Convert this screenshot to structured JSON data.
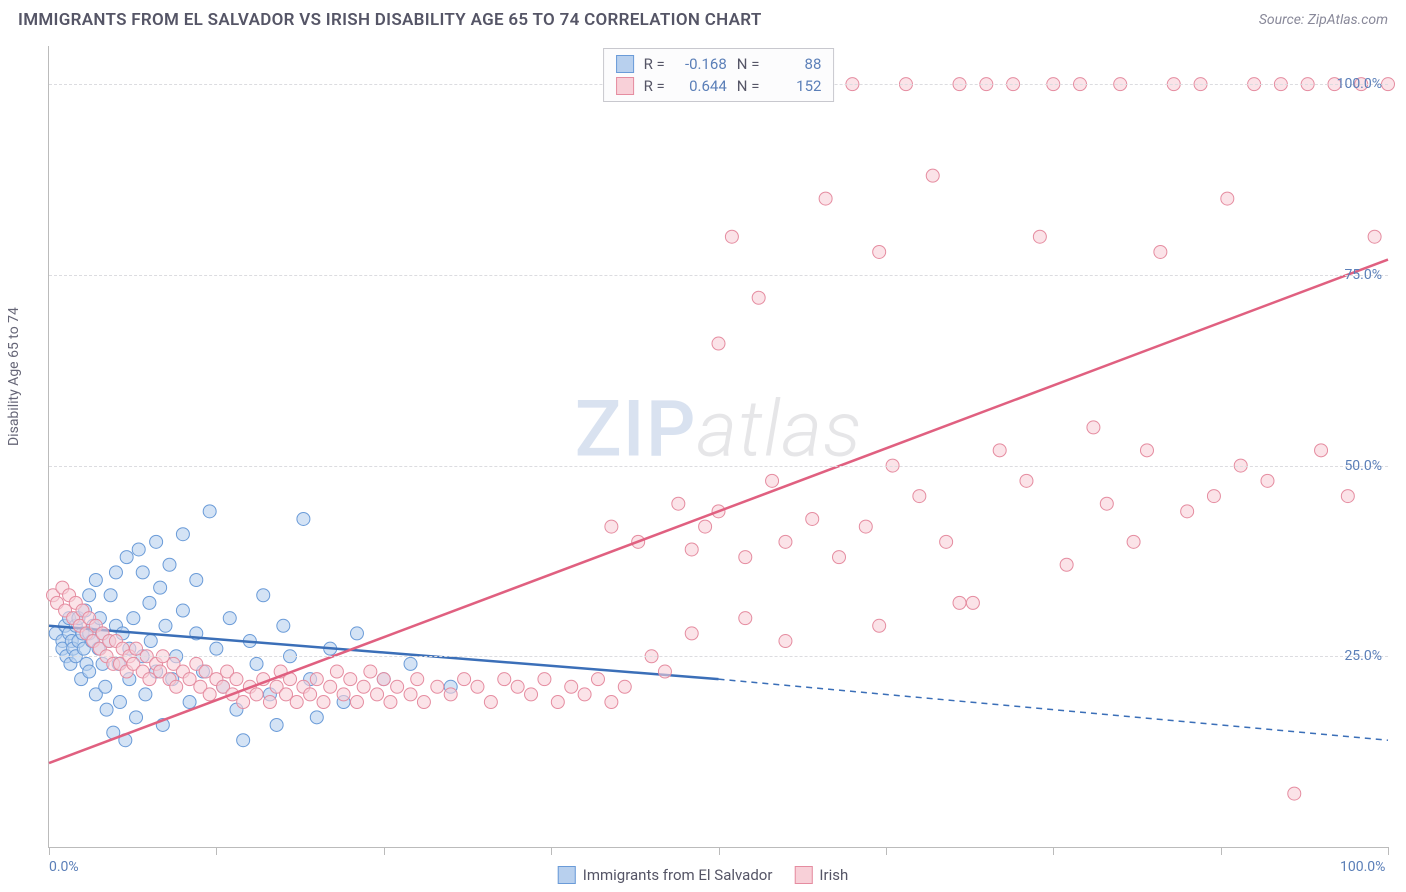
{
  "title": "IMMIGRANTS FROM EL SALVADOR VS IRISH DISABILITY AGE 65 TO 74 CORRELATION CHART",
  "source": "Source: ZipAtlas.com",
  "ylabel": "Disability Age 65 to 74",
  "watermark_zip": "ZIP",
  "watermark_atlas": "atlas",
  "chart": {
    "type": "scatter",
    "xlim": [
      0,
      100
    ],
    "ylim": [
      0,
      105
    ],
    "x_ticks": [
      0,
      12.5,
      25,
      37.5,
      50,
      62.5,
      75,
      87.5,
      100
    ],
    "x_tick_labels": {
      "0": "0.0%",
      "100": "100.0%"
    },
    "y_gridlines": [
      25,
      50,
      75,
      100
    ],
    "y_tick_labels": {
      "25": "25.0%",
      "50": "50.0%",
      "75": "75.0%",
      "100": "100.0%"
    },
    "background_color": "#ffffff",
    "grid_color": "#dcdce0",
    "axis_color": "#bbbbbb",
    "series": [
      {
        "name": "Immigrants from El Salvador",
        "short": "el_salvador",
        "color_fill": "#b8d0ee",
        "color_stroke": "#6a9bd8",
        "line_color": "#3b6fb8",
        "marker_r": 6.5,
        "R": "-0.168",
        "N": "88",
        "trend": {
          "x0": 0,
          "y0": 29,
          "x1": 50,
          "y1": 22,
          "x_dash_end": 100,
          "y_dash_end": 14
        },
        "points": [
          [
            0.5,
            28
          ],
          [
            1,
            27
          ],
          [
            1,
            26
          ],
          [
            1.2,
            29
          ],
          [
            1.3,
            25
          ],
          [
            1.5,
            28
          ],
          [
            1.5,
            30
          ],
          [
            1.6,
            24
          ],
          [
            1.7,
            27
          ],
          [
            1.8,
            26
          ],
          [
            2,
            29
          ],
          [
            2,
            25
          ],
          [
            2.2,
            30
          ],
          [
            2.2,
            27
          ],
          [
            2.4,
            22
          ],
          [
            2.5,
            28
          ],
          [
            2.6,
            26
          ],
          [
            2.7,
            31
          ],
          [
            2.8,
            24
          ],
          [
            3,
            28
          ],
          [
            3,
            33
          ],
          [
            3,
            23
          ],
          [
            3.2,
            27
          ],
          [
            3.3,
            29
          ],
          [
            3.5,
            20
          ],
          [
            3.5,
            35
          ],
          [
            3.7,
            26
          ],
          [
            3.8,
            30
          ],
          [
            4,
            24
          ],
          [
            4,
            28
          ],
          [
            4.2,
            21
          ],
          [
            4.3,
            18
          ],
          [
            4.5,
            27
          ],
          [
            4.6,
            33
          ],
          [
            4.8,
            15
          ],
          [
            5,
            29
          ],
          [
            5,
            36
          ],
          [
            5.2,
            24
          ],
          [
            5.3,
            19
          ],
          [
            5.5,
            28
          ],
          [
            5.7,
            14
          ],
          [
            5.8,
            38
          ],
          [
            6,
            26
          ],
          [
            6,
            22
          ],
          [
            6.3,
            30
          ],
          [
            6.5,
            17
          ],
          [
            6.7,
            39
          ],
          [
            7,
            25
          ],
          [
            7,
            36
          ],
          [
            7.2,
            20
          ],
          [
            7.5,
            32
          ],
          [
            7.6,
            27
          ],
          [
            8,
            40
          ],
          [
            8,
            23
          ],
          [
            8.3,
            34
          ],
          [
            8.5,
            16
          ],
          [
            8.7,
            29
          ],
          [
            9,
            37
          ],
          [
            9.2,
            22
          ],
          [
            9.5,
            25
          ],
          [
            10,
            31
          ],
          [
            10,
            41
          ],
          [
            10.5,
            19
          ],
          [
            11,
            28
          ],
          [
            11,
            35
          ],
          [
            11.5,
            23
          ],
          [
            12,
            44
          ],
          [
            12.5,
            26
          ],
          [
            13,
            21
          ],
          [
            13.5,
            30
          ],
          [
            14,
            18
          ],
          [
            14.5,
            14
          ],
          [
            15,
            27
          ],
          [
            15.5,
            24
          ],
          [
            16,
            33
          ],
          [
            16.5,
            20
          ],
          [
            17,
            16
          ],
          [
            17.5,
            29
          ],
          [
            18,
            25
          ],
          [
            19,
            43
          ],
          [
            19.5,
            22
          ],
          [
            20,
            17
          ],
          [
            21,
            26
          ],
          [
            22,
            19
          ],
          [
            23,
            28
          ],
          [
            25,
            22
          ],
          [
            27,
            24
          ],
          [
            30,
            21
          ]
        ]
      },
      {
        "name": "Irish",
        "short": "irish",
        "color_fill": "#f8d0d8",
        "color_stroke": "#e58ca0",
        "line_color": "#e06080",
        "marker_r": 6.5,
        "R": "0.644",
        "N": "152",
        "trend": {
          "x0": 0,
          "y0": 11,
          "x1": 100,
          "y1": 77
        },
        "points": [
          [
            0.3,
            33
          ],
          [
            0.6,
            32
          ],
          [
            1,
            34
          ],
          [
            1.2,
            31
          ],
          [
            1.5,
            33
          ],
          [
            1.8,
            30
          ],
          [
            2,
            32
          ],
          [
            2.3,
            29
          ],
          [
            2.5,
            31
          ],
          [
            2.8,
            28
          ],
          [
            3,
            30
          ],
          [
            3.3,
            27
          ],
          [
            3.5,
            29
          ],
          [
            3.8,
            26
          ],
          [
            4,
            28
          ],
          [
            4.3,
            25
          ],
          [
            4.5,
            27
          ],
          [
            4.8,
            24
          ],
          [
            5,
            27
          ],
          [
            5.3,
            24
          ],
          [
            5.5,
            26
          ],
          [
            5.8,
            23
          ],
          [
            6,
            25
          ],
          [
            6.3,
            24
          ],
          [
            6.5,
            26
          ],
          [
            7,
            23
          ],
          [
            7.3,
            25
          ],
          [
            7.5,
            22
          ],
          [
            8,
            24
          ],
          [
            8.3,
            23
          ],
          [
            8.5,
            25
          ],
          [
            9,
            22
          ],
          [
            9.3,
            24
          ],
          [
            9.5,
            21
          ],
          [
            10,
            23
          ],
          [
            10.5,
            22
          ],
          [
            11,
            24
          ],
          [
            11.3,
            21
          ],
          [
            11.7,
            23
          ],
          [
            12,
            20
          ],
          [
            12.5,
            22
          ],
          [
            13,
            21
          ],
          [
            13.3,
            23
          ],
          [
            13.7,
            20
          ],
          [
            14,
            22
          ],
          [
            14.5,
            19
          ],
          [
            15,
            21
          ],
          [
            15.5,
            20
          ],
          [
            16,
            22
          ],
          [
            16.5,
            19
          ],
          [
            17,
            21
          ],
          [
            17.3,
            23
          ],
          [
            17.7,
            20
          ],
          [
            18,
            22
          ],
          [
            18.5,
            19
          ],
          [
            19,
            21
          ],
          [
            19.5,
            20
          ],
          [
            20,
            22
          ],
          [
            20.5,
            19
          ],
          [
            21,
            21
          ],
          [
            21.5,
            23
          ],
          [
            22,
            20
          ],
          [
            22.5,
            22
          ],
          [
            23,
            19
          ],
          [
            23.5,
            21
          ],
          [
            24,
            23
          ],
          [
            24.5,
            20
          ],
          [
            25,
            22
          ],
          [
            25.5,
            19
          ],
          [
            26,
            21
          ],
          [
            27,
            20
          ],
          [
            27.5,
            22
          ],
          [
            28,
            19
          ],
          [
            29,
            21
          ],
          [
            30,
            20
          ],
          [
            31,
            22
          ],
          [
            32,
            21
          ],
          [
            33,
            19
          ],
          [
            34,
            22
          ],
          [
            35,
            21
          ],
          [
            36,
            20
          ],
          [
            37,
            22
          ],
          [
            38,
            19
          ],
          [
            39,
            21
          ],
          [
            40,
            20
          ],
          [
            41,
            22
          ],
          [
            42,
            19
          ],
          [
            42,
            42
          ],
          [
            43,
            21
          ],
          [
            44,
            40
          ],
          [
            46,
            23
          ],
          [
            47,
            45
          ],
          [
            48,
            39
          ],
          [
            49,
            42
          ],
          [
            50,
            44
          ],
          [
            50,
            66
          ],
          [
            51,
            80
          ],
          [
            52,
            38
          ],
          [
            53,
            72
          ],
          [
            54,
            48
          ],
          [
            55,
            40
          ],
          [
            56,
            100
          ],
          [
            57,
            43
          ],
          [
            58,
            85
          ],
          [
            59,
            38
          ],
          [
            60,
            100
          ],
          [
            61,
            42
          ],
          [
            62,
            78
          ],
          [
            63,
            50
          ],
          [
            64,
            100
          ],
          [
            65,
            46
          ],
          [
            66,
            88
          ],
          [
            67,
            40
          ],
          [
            68,
            100
          ],
          [
            69,
            32
          ],
          [
            70,
            100
          ],
          [
            71,
            52
          ],
          [
            72,
            100
          ],
          [
            73,
            48
          ],
          [
            74,
            80
          ],
          [
            75,
            100
          ],
          [
            76,
            37
          ],
          [
            77,
            100
          ],
          [
            78,
            55
          ],
          [
            79,
            45
          ],
          [
            80,
            100
          ],
          [
            81,
            40
          ],
          [
            82,
            52
          ],
          [
            83,
            78
          ],
          [
            84,
            100
          ],
          [
            85,
            44
          ],
          [
            86,
            100
          ],
          [
            87,
            46
          ],
          [
            88,
            85
          ],
          [
            89,
            50
          ],
          [
            90,
            100
          ],
          [
            91,
            48
          ],
          [
            92,
            100
          ],
          [
            93,
            7
          ],
          [
            94,
            100
          ],
          [
            95,
            52
          ],
          [
            96,
            100
          ],
          [
            97,
            46
          ],
          [
            98,
            100
          ],
          [
            99,
            80
          ],
          [
            100,
            100
          ],
          [
            45,
            25
          ],
          [
            48,
            28
          ],
          [
            52,
            30
          ],
          [
            55,
            27
          ],
          [
            62,
            29
          ],
          [
            68,
            32
          ]
        ]
      }
    ]
  }
}
